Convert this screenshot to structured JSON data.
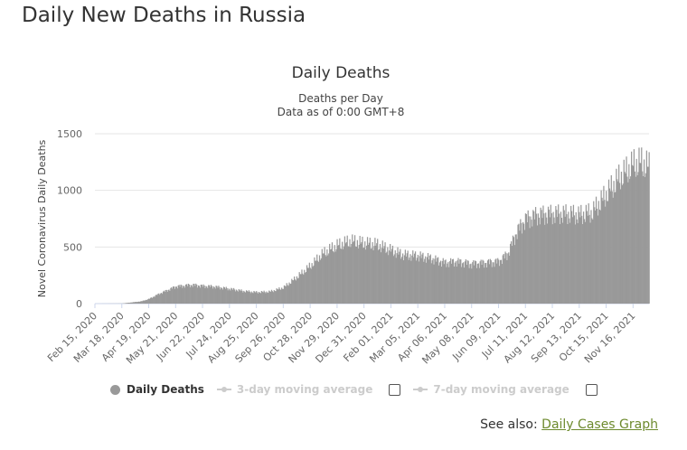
{
  "page": {
    "title": "Daily New Deaths in Russia"
  },
  "legend": {
    "daily_deaths": "Daily Deaths",
    "avg3": "3-day moving average",
    "avg7": "7-day moving average"
  },
  "see_also": {
    "prefix": "See also:",
    "link": "Daily Cases Graph"
  },
  "colors": {
    "bars": "#999999",
    "legend_off": "#cccccc",
    "link": "#6d8a2d"
  },
  "chart_data": {
    "type": "bar",
    "title": "Daily Deaths",
    "subtitle": [
      "Deaths per Day",
      "Data as of 0:00 GMT+8"
    ],
    "ylabel": "Novel Coronavirus Daily Deaths",
    "xlabel": "",
    "ylim": [
      0,
      1500
    ],
    "y_ticks": [
      0,
      500,
      1000,
      1500
    ],
    "x_range": [
      "2020-02-15",
      "2021-12-05"
    ],
    "x_tick_labels": [
      "Feb 15, 2020",
      "Mar 18, 2020",
      "Apr 19, 2020",
      "May 21, 2020",
      "Jun 22, 2020",
      "Jul 24, 2020",
      "Aug 25, 2020",
      "Sep 26, 2020",
      "Oct 28, 2020",
      "Nov 29, 2020",
      "Dec 31, 2020",
      "Feb 01, 2021",
      "Mar 05, 2021",
      "Apr 06, 2021",
      "May 08, 2021",
      "Jun 09, 2021",
      "Jul 11, 2021",
      "Aug 12, 2021",
      "Sep 13, 2021",
      "Oct 15, 2021",
      "Nov 16, 2021"
    ],
    "grid": {
      "y": true,
      "x": false
    },
    "legend_position": "bottom",
    "series": [
      {
        "name": "Daily Deaths",
        "values_by_period": [
          {
            "x": "2020-02-15",
            "y": 0
          },
          {
            "x": "2020-03-18",
            "y": 1
          },
          {
            "x": "2020-04-10",
            "y": 20
          },
          {
            "x": "2020-04-19",
            "y": 40
          },
          {
            "x": "2020-05-01",
            "y": 85
          },
          {
            "x": "2020-05-21",
            "y": 150
          },
          {
            "x": "2020-06-10",
            "y": 165
          },
          {
            "x": "2020-06-22",
            "y": 155
          },
          {
            "x": "2020-07-05",
            "y": 150
          },
          {
            "x": "2020-07-24",
            "y": 130
          },
          {
            "x": "2020-08-10",
            "y": 110
          },
          {
            "x": "2020-08-25",
            "y": 100
          },
          {
            "x": "2020-09-10",
            "y": 105
          },
          {
            "x": "2020-09-26",
            "y": 140
          },
          {
            "x": "2020-10-10",
            "y": 220
          },
          {
            "x": "2020-10-28",
            "y": 330
          },
          {
            "x": "2020-11-12",
            "y": 440
          },
          {
            "x": "2020-11-29",
            "y": 510
          },
          {
            "x": "2020-12-15",
            "y": 550
          },
          {
            "x": "2020-12-31",
            "y": 530
          },
          {
            "x": "2021-01-15",
            "y": 520
          },
          {
            "x": "2021-02-01",
            "y": 470
          },
          {
            "x": "2021-02-15",
            "y": 430
          },
          {
            "x": "2021-03-05",
            "y": 420
          },
          {
            "x": "2021-03-20",
            "y": 400
          },
          {
            "x": "2021-04-06",
            "y": 360
          },
          {
            "x": "2021-04-20",
            "y": 370
          },
          {
            "x": "2021-05-08",
            "y": 350
          },
          {
            "x": "2021-05-25",
            "y": 360
          },
          {
            "x": "2021-06-09",
            "y": 370
          },
          {
            "x": "2021-06-20",
            "y": 440
          },
          {
            "x": "2021-07-01",
            "y": 640
          },
          {
            "x": "2021-07-11",
            "y": 740
          },
          {
            "x": "2021-07-25",
            "y": 780
          },
          {
            "x": "2021-08-12",
            "y": 790
          },
          {
            "x": "2021-08-28",
            "y": 790
          },
          {
            "x": "2021-09-13",
            "y": 780
          },
          {
            "x": "2021-09-28",
            "y": 800
          },
          {
            "x": "2021-10-15",
            "y": 960
          },
          {
            "x": "2021-10-30",
            "y": 1100
          },
          {
            "x": "2021-11-16",
            "y": 1220
          },
          {
            "x": "2021-11-25",
            "y": 1240
          },
          {
            "x": "2021-12-05",
            "y": 1200
          }
        ]
      }
    ]
  }
}
